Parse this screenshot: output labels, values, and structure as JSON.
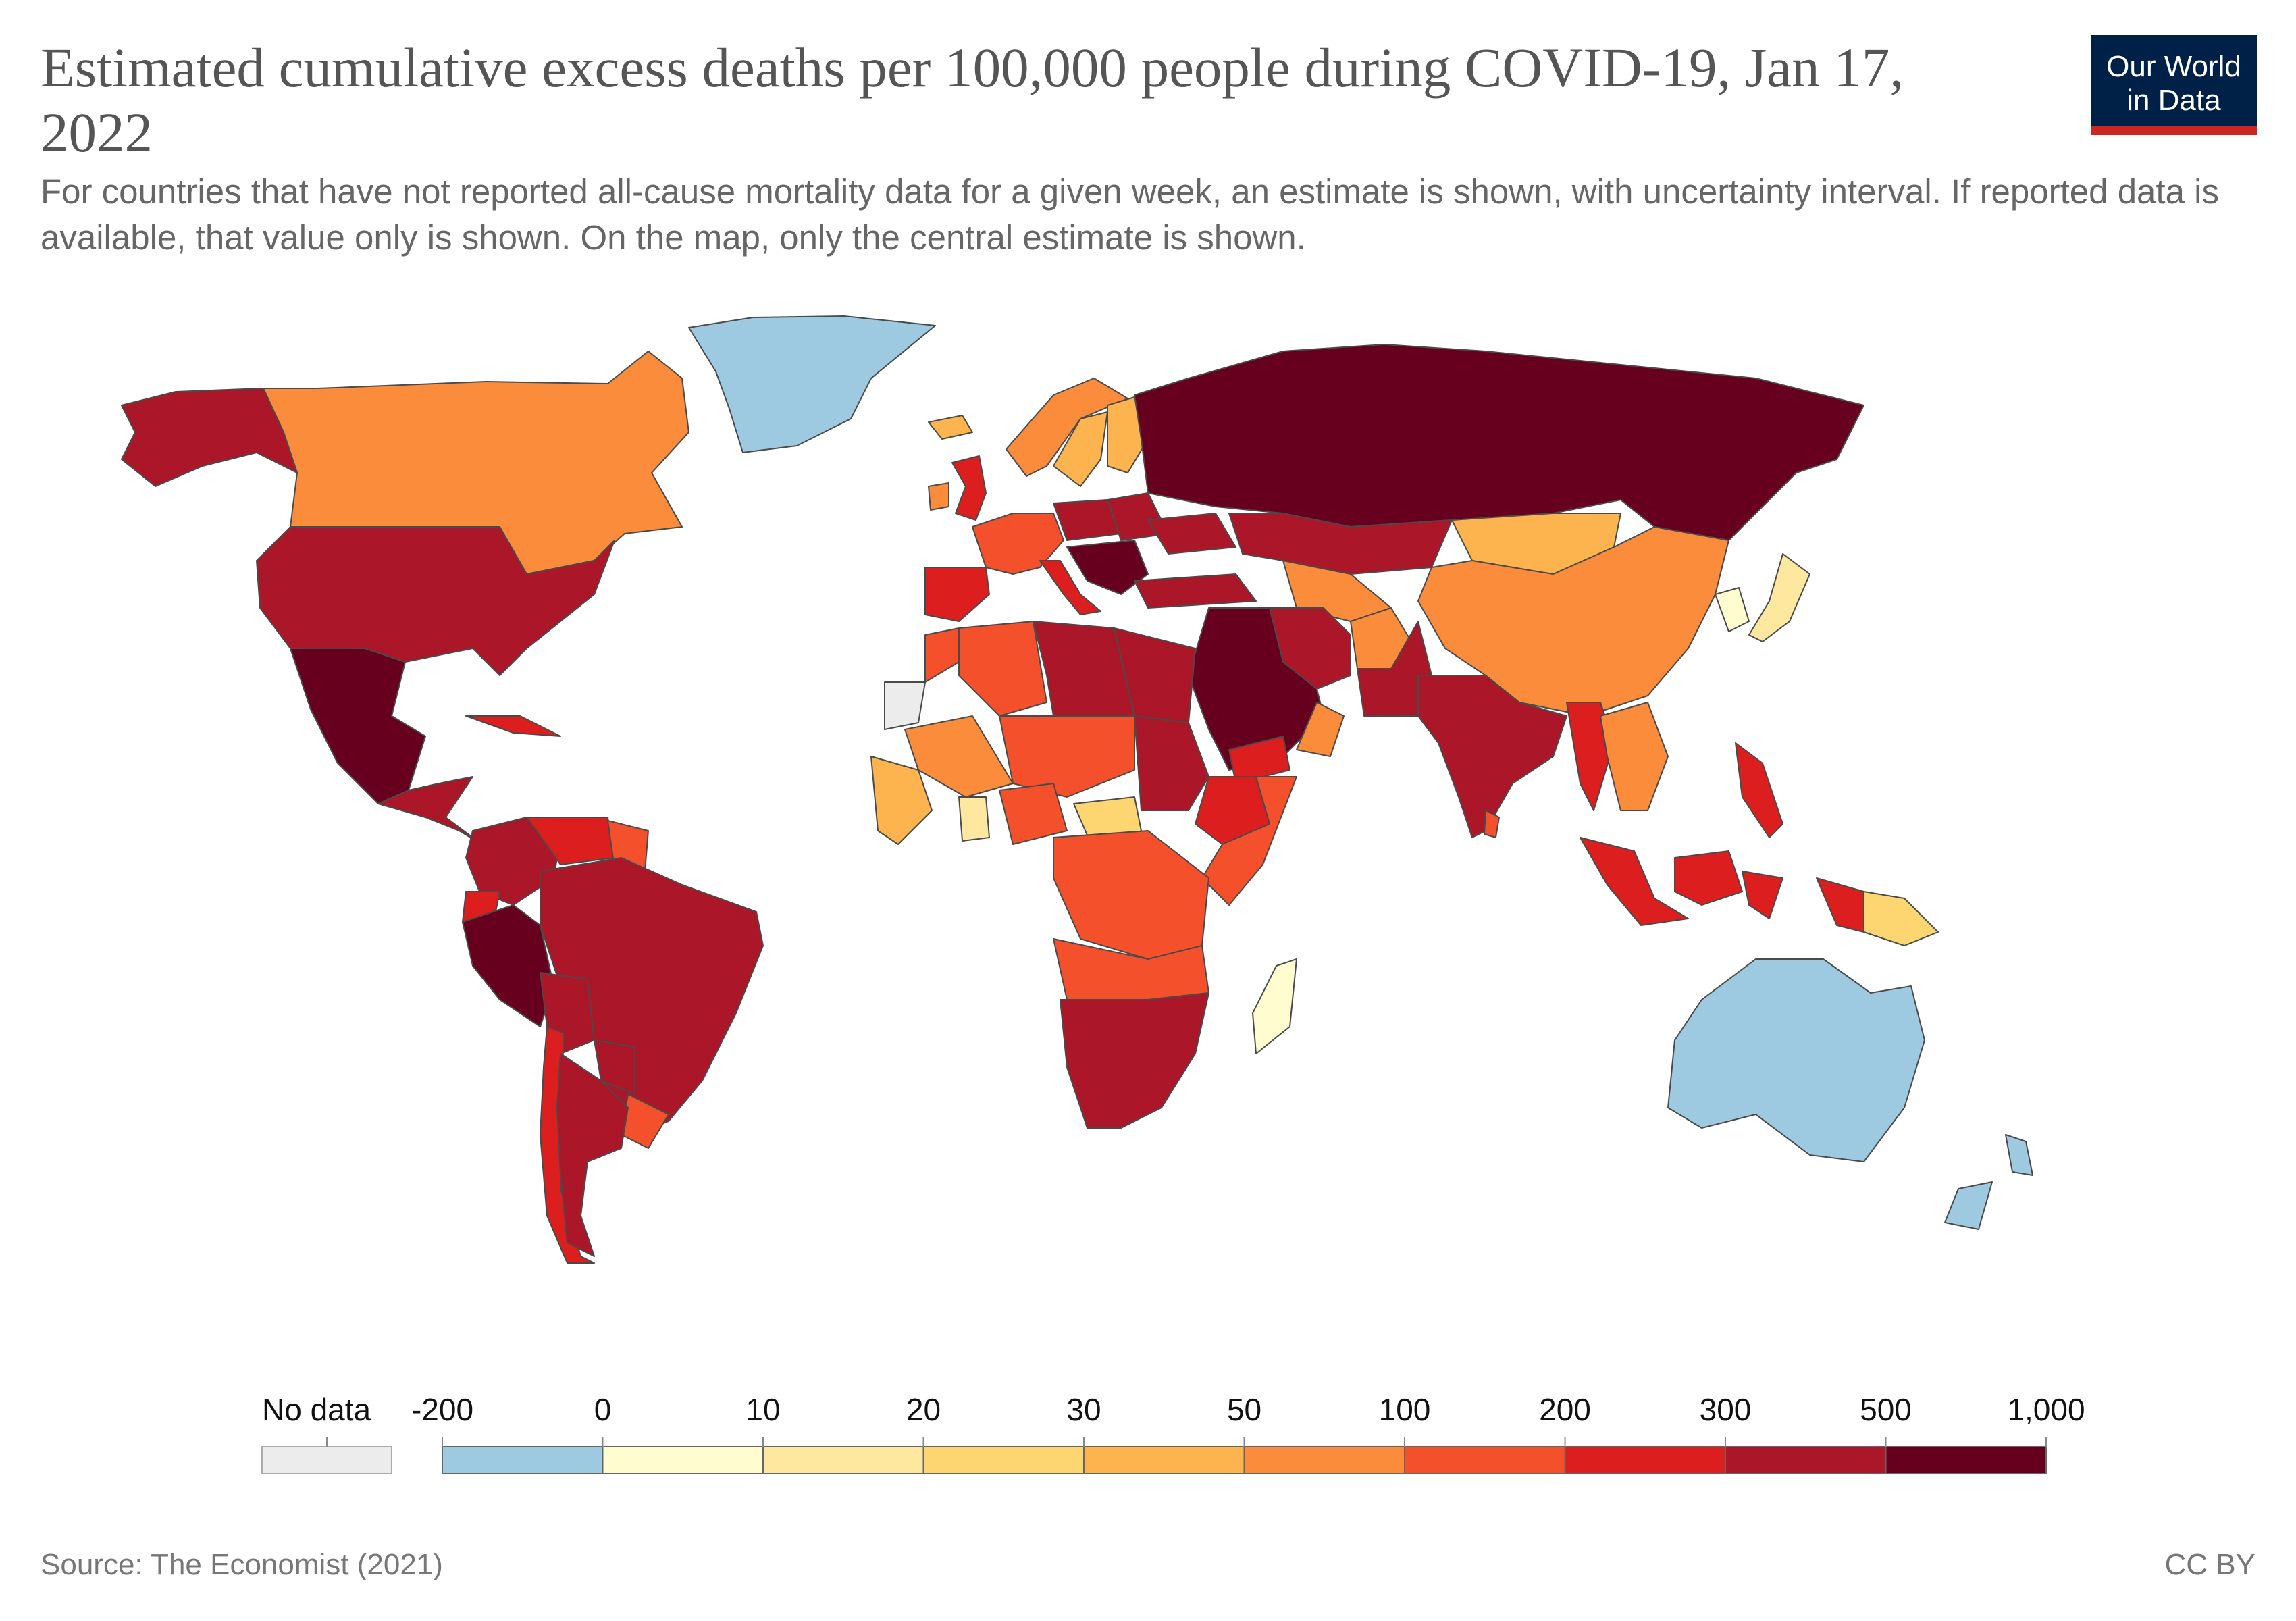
{
  "title": "Estimated cumulative excess deaths per 100,000 people during COVID-19, Jan 17, 2022",
  "subtitle": "For countries that have not reported all-cause mortality data for a given week, an estimate is shown, with uncertainty interval. If reported data is available, that value only is shown. On the map, only the central estimate is shown.",
  "logo": {
    "line1": "Our World",
    "line2": "in Data"
  },
  "legend": {
    "no_data_label": "No data",
    "no_data_color": "#ececec",
    "tick_labels": [
      "-200",
      "0",
      "10",
      "20",
      "30",
      "50",
      "100",
      "200",
      "300",
      "500",
      "1,000"
    ],
    "bins": [
      {
        "from": "-200",
        "to": "0",
        "color": "#9ecae1"
      },
      {
        "from": "0",
        "to": "10",
        "color": "#fffcd0"
      },
      {
        "from": "10",
        "to": "20",
        "color": "#fee8a0"
      },
      {
        "from": "20",
        "to": "30",
        "color": "#fed671"
      },
      {
        "from": "30",
        "to": "50",
        "color": "#fdb44e"
      },
      {
        "from": "50",
        "to": "100",
        "color": "#fb8c3c"
      },
      {
        "from": "100",
        "to": "200",
        "color": "#f4502c"
      },
      {
        "from": "200",
        "to": "300",
        "color": "#dd1e1e"
      },
      {
        "from": "300",
        "to": "500",
        "color": "#ab1628"
      },
      {
        "from": "500",
        "to": "1,000",
        "color": "#67001f"
      }
    ]
  },
  "regions": [
    {
      "name": "Greenland",
      "color": "#9ecae1"
    },
    {
      "name": "Australia",
      "color": "#9ecae1"
    },
    {
      "name": "New Zealand",
      "color": "#9ecae1"
    },
    {
      "name": "Canada",
      "color": "#fb8c3c"
    },
    {
      "name": "Alaska",
      "color": "#ab1628"
    },
    {
      "name": "United States",
      "color": "#ab1628"
    },
    {
      "name": "Mexico",
      "color": "#67001f"
    },
    {
      "name": "Central America",
      "color": "#ab1628"
    },
    {
      "name": "Cuba",
      "color": "#dd1e1e"
    },
    {
      "name": "Colombia",
      "color": "#ab1628"
    },
    {
      "name": "Venezuela",
      "color": "#dd1e1e"
    },
    {
      "name": "Guyana",
      "color": "#f4502c"
    },
    {
      "name": "Ecuador",
      "color": "#dd1e1e"
    },
    {
      "name": "Peru",
      "color": "#67001f"
    },
    {
      "name": "Brazil",
      "color": "#ab1628"
    },
    {
      "name": "Bolivia",
      "color": "#ab1628"
    },
    {
      "name": "Paraguay",
      "color": "#ab1628"
    },
    {
      "name": "Uruguay",
      "color": "#f4502c"
    },
    {
      "name": "Chile",
      "color": "#dd1e1e"
    },
    {
      "name": "Argentina",
      "color": "#ab1628"
    },
    {
      "name": "Iceland",
      "color": "#fdb44e"
    },
    {
      "name": "Norway",
      "color": "#fb8c3c"
    },
    {
      "name": "Sweden",
      "color": "#fdb44e"
    },
    {
      "name": "Finland",
      "color": "#fdb44e"
    },
    {
      "name": "United Kingdom",
      "color": "#dd1e1e"
    },
    {
      "name": "Ireland",
      "color": "#fb8c3c"
    },
    {
      "name": "Spain and Portugal",
      "color": "#dd1e1e"
    },
    {
      "name": "Western Europe",
      "color": "#f4502c"
    },
    {
      "name": "Italy",
      "color": "#dd1e1e"
    },
    {
      "name": "Poland",
      "color": "#ab1628"
    },
    {
      "name": "Eastern Europe",
      "color": "#ab1628"
    },
    {
      "name": "Balkans",
      "color": "#67001f"
    },
    {
      "name": "Ukraine",
      "color": "#ab1628"
    },
    {
      "name": "Turkey",
      "color": "#ab1628"
    },
    {
      "name": "Russia",
      "color": "#67001f"
    },
    {
      "name": "Kazakhstan",
      "color": "#ab1628"
    },
    {
      "name": "Mongolia",
      "color": "#fdb44e"
    },
    {
      "name": "China",
      "color": "#fb8c3c"
    },
    {
      "name": "Korean Peninsula",
      "color": "#fffcd0"
    },
    {
      "name": "Japan",
      "color": "#fee8a0"
    },
    {
      "name": "Central Asia",
      "color": "#fb8c3c"
    },
    {
      "name": "Iran",
      "color": "#ab1628"
    },
    {
      "name": "Afghanistan",
      "color": "#fb8c3c"
    },
    {
      "name": "Pakistan",
      "color": "#ab1628"
    },
    {
      "name": "India",
      "color": "#ab1628"
    },
    {
      "name": "Myanmar",
      "color": "#dd1e1e"
    },
    {
      "name": "Southeast Asia mainland",
      "color": "#fb8c3c"
    },
    {
      "name": "Iraq and Arabian Peninsula",
      "color": "#67001f"
    },
    {
      "name": "Yemen",
      "color": "#dd1e1e"
    },
    {
      "name": "Oman",
      "color": "#fb8c3c"
    },
    {
      "name": "Philippines",
      "color": "#dd1e1e"
    },
    {
      "name": "Indonesia",
      "color": "#dd1e1e"
    },
    {
      "name": "Papua New Guinea",
      "color": "#fed671"
    },
    {
      "name": "Sri Lanka",
      "color": "#f4502c"
    },
    {
      "name": "Morocco",
      "color": "#f4502c"
    },
    {
      "name": "Western Sahara",
      "color": "#ececec"
    },
    {
      "name": "Algeria",
      "color": "#f4502c"
    },
    {
      "name": "Libya",
      "color": "#ab1628"
    },
    {
      "name": "Egypt",
      "color": "#ab1628"
    },
    {
      "name": "Sahel",
      "color": "#f4502c"
    },
    {
      "name": "Mali",
      "color": "#fb8c3c"
    },
    {
      "name": "West Africa coast",
      "color": "#fdb44e"
    },
    {
      "name": "Ghana",
      "color": "#fee8a0"
    },
    {
      "name": "Nigeria",
      "color": "#f4502c"
    },
    {
      "name": "Sudan",
      "color": "#ab1628"
    },
    {
      "name": "Ethiopia",
      "color": "#dd1e1e"
    },
    {
      "name": "Somalia and Kenya",
      "color": "#f4502c"
    },
    {
      "name": "Central African Republic",
      "color": "#fed671"
    },
    {
      "name": "Central Africa",
      "color": "#f4502c"
    },
    {
      "name": "Southern Central Africa",
      "color": "#f4502c"
    },
    {
      "name": "Madagascar",
      "color": "#fffcd0"
    },
    {
      "name": "Southern Africa",
      "color": "#ab1628"
    }
  ],
  "source": "Source: The Economist (2021)",
  "license": "CC BY"
}
